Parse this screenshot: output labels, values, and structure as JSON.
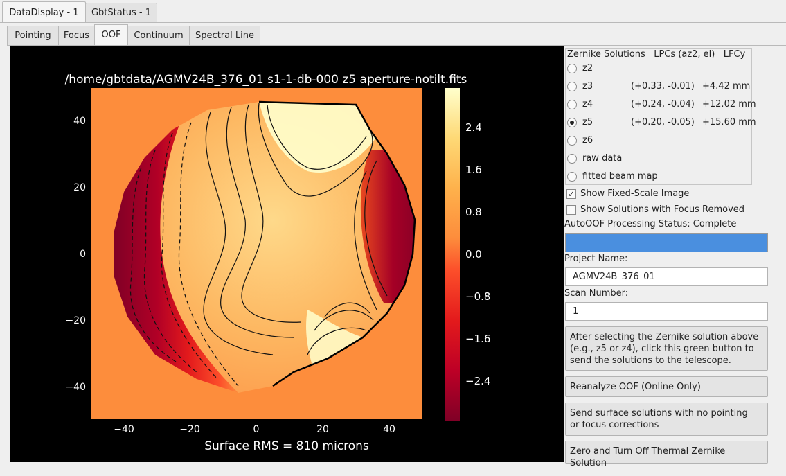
{
  "tabs": [
    {
      "label": "DataDisplay - 1",
      "active": true
    },
    {
      "label": "GbtStatus - 1",
      "active": false
    }
  ],
  "subtabs": [
    {
      "label": "Pointing"
    },
    {
      "label": "Focus"
    },
    {
      "label": "OOF",
      "active": true
    },
    {
      "label": "Continuum"
    },
    {
      "label": "Spectral Line"
    }
  ],
  "plot": {
    "title": "/home/gbtdata/AGMV24B_376_01 s1-1-db-000 z5 aperture-notilt.fits",
    "xlabel": "Surface RMS = 810 microns",
    "xticks": [
      "−40",
      "−20",
      "0",
      "20",
      "40"
    ],
    "yticks": [
      "40",
      "20",
      "0",
      "−20",
      "−40"
    ],
    "cbar_ticks": [
      "2.4",
      "1.6",
      "0.8",
      "0.0",
      "−0.8",
      "−1.6",
      "−2.4"
    ]
  },
  "chart_data": {
    "type": "heatmap",
    "title": "/home/gbtdata/AGMV24B_376_01 s1-1-db-000 z5 aperture-notilt.fits",
    "xlabel": "Surface RMS = 810 microns",
    "ylabel": "",
    "xlim": [
      -50,
      50
    ],
    "ylim": [
      -50,
      50
    ],
    "colorbar_range": [
      -3.0,
      3.0
    ],
    "colorbar_ticks": [
      2.4,
      1.6,
      0.8,
      0.0,
      -0.8,
      -1.6,
      -2.4
    ],
    "colormap": "YlOrRd_r"
  },
  "zernike": {
    "header": {
      "title": "Zernike Solutions",
      "lpc": "LPCs (az2, el)",
      "lfc": "LFCy"
    },
    "options": [
      {
        "label": "z2",
        "lpc": "",
        "lfc": "",
        "checked": false
      },
      {
        "label": "z3",
        "lpc": "(+0.33, -0.01)",
        "lfc": "+4.42 mm",
        "checked": false
      },
      {
        "label": "z4",
        "lpc": "(+0.24, -0.04)",
        "lfc": "+12.02 mm",
        "checked": false
      },
      {
        "label": "z5",
        "lpc": "(+0.20, -0.05)",
        "lfc": "+15.60 mm",
        "checked": true
      },
      {
        "label": "z6",
        "lpc": "",
        "lfc": "",
        "checked": false
      },
      {
        "label": "raw data",
        "lpc": "",
        "lfc": "",
        "checked": false
      },
      {
        "label": "fitted beam map",
        "lpc": "",
        "lfc": "",
        "checked": false
      }
    ]
  },
  "checks": {
    "fixed_scale": {
      "label": "Show Fixed-Scale Image",
      "checked": true
    },
    "focus_removed": {
      "label": "Show Solutions with Focus Removed",
      "checked": false
    }
  },
  "status": {
    "label": "AutoOOF Processing Status: Complete",
    "progress": 1.0
  },
  "project": {
    "label": "Project Name:",
    "value": "AGMV24B_376_01"
  },
  "scan": {
    "label": "Scan Number:",
    "value": "1"
  },
  "buttons": {
    "send_solutions": "After selecting the Zernike solution above\n (e.g., z5 or z4), click this green button to\n send the solutions to the telescope.",
    "reanalyze": "Reanalyze OOF (Online Only)",
    "send_surface": "Send surface solutions with no pointing\n or focus corrections",
    "zero_thermal": "Zero and Turn Off Thermal Zernike Solution"
  },
  "colors": {
    "progress": "#4a8fdf",
    "plot_bg": "#000000"
  }
}
